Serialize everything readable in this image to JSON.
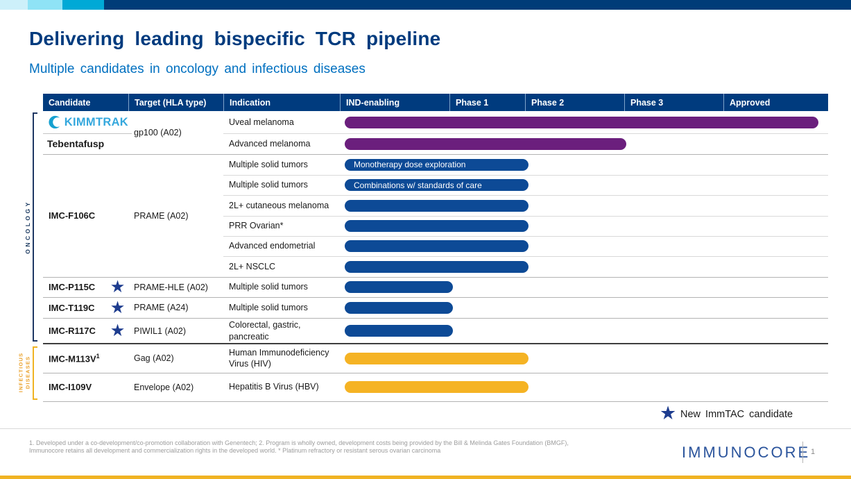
{
  "slide": {
    "title": "Delivering leading bispecific TCR pipeline",
    "subtitle": "Multiple candidates in oncology and infectious diseases",
    "legend": {
      "star_label": "New ImmTAC candidate"
    },
    "footnote_line1": "1. Developed under a co-development/co-promotion collaboration with Genentech; 2. Program is wholly owned, development costs being provided by the Bill & Melinda Gates Foundation (BMGF),",
    "footnote_line2": "Immunocore retains all development and commercialization rights in the developed world. * Platinum refractory or resistant serous  ovarian carcinoma",
    "footer_logo": "IMMUNOCORE",
    "page_number": "1"
  },
  "groups": {
    "oncology_label": "ONCOLOGY",
    "infectious_label_line1": "INFECTIOUS",
    "infectious_label_line2": "DISEASES"
  },
  "table": {
    "columns": [
      "Candidate",
      "Target (HLA type)",
      "Indication",
      "IND-enabling",
      "Phase 1",
      "Phase 2",
      "Phase 3",
      "Approved"
    ],
    "programs": [
      {
        "candidate": "Tebentafusp",
        "logo": "KIMMTRAK",
        "group": "oncology",
        "target": "gp100 (A02)",
        "indications": [
          {
            "name": "Uveal melanoma",
            "bar": {
              "color": "purple",
              "end": "approved"
            }
          },
          {
            "name": "Advanced melanoma",
            "bar": {
              "color": "purple",
              "end": "phase2"
            }
          }
        ]
      },
      {
        "candidate": "IMC-F106C",
        "group": "oncology",
        "target": "PRAME (A02)",
        "indications": [
          {
            "name": "Multiple solid tumors",
            "bar": {
              "color": "navy",
              "end": "phase1",
              "label": "Monotherapy dose exploration"
            }
          },
          {
            "name": "Multiple solid tumors",
            "bar": {
              "color": "navy",
              "end": "phase1",
              "label": "Combinations w/ standards of care"
            }
          },
          {
            "name": "2L+ cutaneous melanoma",
            "bar": {
              "color": "navy",
              "end": "phase1"
            }
          },
          {
            "name": "PRR Ovarian*",
            "bar": {
              "color": "navy",
              "end": "phase1"
            }
          },
          {
            "name": "Advanced endometrial",
            "bar": {
              "color": "navy",
              "end": "phase1"
            }
          },
          {
            "name": "2L+ NSCLC",
            "bar": {
              "color": "navy",
              "end": "phase1"
            }
          }
        ]
      },
      {
        "candidate": "IMC-P115C",
        "star": true,
        "group": "oncology",
        "target": "PRAME-HLE (A02)",
        "indications": [
          {
            "name": "Multiple solid tumors",
            "bar": {
              "color": "navy",
              "end": "ind"
            }
          }
        ]
      },
      {
        "candidate": "IMC-T119C",
        "star": true,
        "group": "oncology",
        "target": "PRAME (A24)",
        "indications": [
          {
            "name": "Multiple solid tumors",
            "bar": {
              "color": "navy",
              "end": "ind"
            }
          }
        ]
      },
      {
        "candidate": "IMC-R117C",
        "star": true,
        "group": "oncology",
        "target": "PIWIL1 (A02)",
        "indications": [
          {
            "name": "Colorectal, gastric, pancreatic",
            "bar": {
              "color": "navy",
              "end": "ind"
            }
          }
        ]
      },
      {
        "candidate": "IMC-M113V",
        "sup": "1",
        "group": "infectious",
        "target": "Gag (A02)",
        "indications": [
          {
            "name": "Human Immunodeficiency Virus (HIV)",
            "bar": {
              "color": "gold",
              "end": "phase1"
            }
          }
        ]
      },
      {
        "candidate": "IMC-I109V",
        "group": "infectious",
        "target": "Envelope (A02)",
        "indications": [
          {
            "name": "Hepatitis B Virus (HBV)",
            "bar": {
              "color": "gold",
              "end": "phase1"
            }
          }
        ]
      }
    ]
  },
  "colors": {
    "topbar": [
      "#cdf0fa",
      "#8fe3f6",
      "#00a9d6",
      "#003c78"
    ],
    "header": "#003b7e",
    "bars": {
      "purple": "#6b1f7d",
      "navy": "#0d4a96",
      "gold": "#f5b324"
    },
    "oncology_bracket": "#1f3864",
    "infectious_bracket": "#f0b323",
    "bottom_bar": "#f0b323"
  },
  "chart_data": {
    "type": "table",
    "title": "Delivering leading bispecific TCR pipeline",
    "subtitle": "Multiple candidates in oncology and infectious diseases",
    "columns": [
      "Candidate",
      "Target (HLA type)",
      "Indication",
      "IND-enabling",
      "Phase 1",
      "Phase 2",
      "Phase 3",
      "Approved"
    ],
    "rows": [
      {
        "group": "Oncology",
        "candidate": "Tebentafusp (KIMMTRAK)",
        "target": "gp100 (A02)",
        "indication": "Uveal melanoma",
        "stage_reached": "Approved",
        "bar_color": "#6b1f7d"
      },
      {
        "group": "Oncology",
        "candidate": "Tebentafusp (KIMMTRAK)",
        "target": "gp100 (A02)",
        "indication": "Advanced melanoma",
        "stage_reached": "Phase 2",
        "bar_color": "#6b1f7d"
      },
      {
        "group": "Oncology",
        "candidate": "IMC-F106C",
        "target": "PRAME (A02)",
        "indication": "Multiple solid tumors",
        "bar_label": "Monotherapy dose exploration",
        "stage_reached": "Phase 1",
        "bar_color": "#0d4a96"
      },
      {
        "group": "Oncology",
        "candidate": "IMC-F106C",
        "target": "PRAME (A02)",
        "indication": "Multiple solid tumors",
        "bar_label": "Combinations w/ standards of care",
        "stage_reached": "Phase 1",
        "bar_color": "#0d4a96"
      },
      {
        "group": "Oncology",
        "candidate": "IMC-F106C",
        "target": "PRAME (A02)",
        "indication": "2L+ cutaneous melanoma",
        "stage_reached": "Phase 1",
        "bar_color": "#0d4a96"
      },
      {
        "group": "Oncology",
        "candidate": "IMC-F106C",
        "target": "PRAME (A02)",
        "indication": "PRR Ovarian*",
        "stage_reached": "Phase 1",
        "bar_color": "#0d4a96"
      },
      {
        "group": "Oncology",
        "candidate": "IMC-F106C",
        "target": "PRAME (A02)",
        "indication": "Advanced endometrial",
        "stage_reached": "Phase 1",
        "bar_color": "#0d4a96"
      },
      {
        "group": "Oncology",
        "candidate": "IMC-F106C",
        "target": "PRAME (A02)",
        "indication": "2L+ NSCLC",
        "stage_reached": "Phase 1",
        "bar_color": "#0d4a96"
      },
      {
        "group": "Oncology",
        "candidate": "IMC-P115C",
        "new_immtac_candidate": true,
        "target": "PRAME-HLE (A02)",
        "indication": "Multiple solid tumors",
        "stage_reached": "IND-enabling",
        "bar_color": "#0d4a96"
      },
      {
        "group": "Oncology",
        "candidate": "IMC-T119C",
        "new_immtac_candidate": true,
        "target": "PRAME (A24)",
        "indication": "Multiple solid tumors",
        "stage_reached": "IND-enabling",
        "bar_color": "#0d4a96"
      },
      {
        "group": "Oncology",
        "candidate": "IMC-R117C",
        "new_immtac_candidate": true,
        "target": "PIWIL1 (A02)",
        "indication": "Colorectal, gastric, pancreatic",
        "stage_reached": "IND-enabling",
        "bar_color": "#0d4a96"
      },
      {
        "group": "Infectious Diseases",
        "candidate": "IMC-M113V¹",
        "target": "Gag (A02)",
        "indication": "Human Immunodeficiency Virus (HIV)",
        "stage_reached": "Phase 1",
        "bar_color": "#f5b324"
      },
      {
        "group": "Infectious Diseases",
        "candidate": "IMC-I109V",
        "target": "Envelope (A02)",
        "indication": "Hepatitis B Virus (HBV)",
        "stage_reached": "Phase 1",
        "bar_color": "#f5b324"
      }
    ],
    "legend": [
      {
        "marker": "star",
        "label": "New ImmTAC candidate"
      }
    ]
  }
}
